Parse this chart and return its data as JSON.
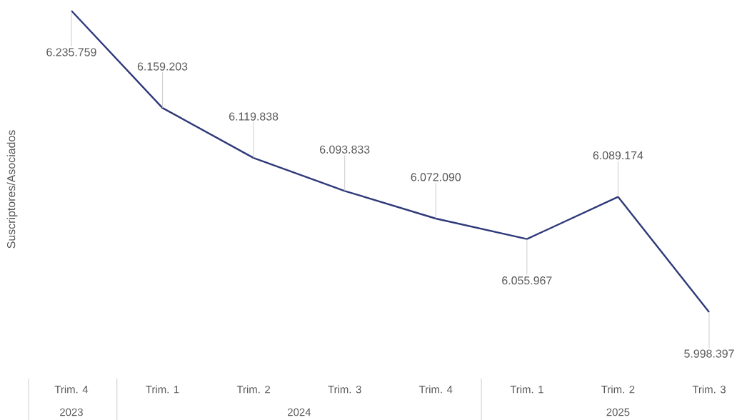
{
  "chart_data": {
    "type": "line",
    "ylabel": "Suscriptores/Asociados",
    "categories": [
      "Trim. 4",
      "Trim. 1",
      "Trim. 2",
      "Trim. 3",
      "Trim. 4",
      "Trim. 1",
      "Trim. 2",
      "Trim. 3"
    ],
    "values": [
      6235759,
      6159203,
      6119838,
      6093833,
      6072090,
      6055967,
      6089174,
      5998397
    ],
    "value_labels": [
      "6.235.759",
      "6.159.203",
      "6.119.838",
      "6.093.833",
      "6.072.090",
      "6.055.967",
      "6.089.174",
      "5.998.397"
    ],
    "color": "#2f3a7a",
    "tick_labels": "x",
    "grid": false,
    "annotations": [
      "2023",
      "2024",
      "2025"
    ]
  }
}
